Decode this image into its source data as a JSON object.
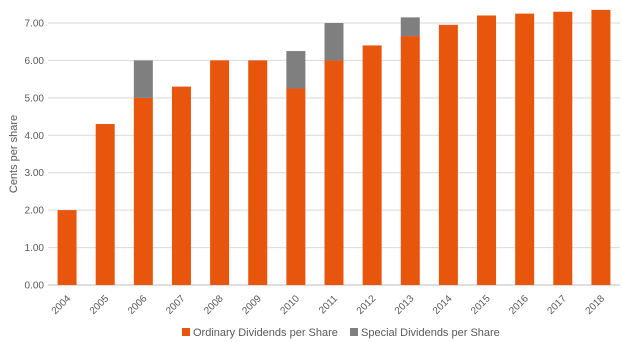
{
  "chart_data": {
    "type": "bar",
    "stacked": true,
    "categories": [
      "2004",
      "2005",
      "2006",
      "2007",
      "2008",
      "2009",
      "2010",
      "2011",
      "2012",
      "2013",
      "2014",
      "2015",
      "2016",
      "2017",
      "2018"
    ],
    "series": [
      {
        "name": "Ordinary Dividends per Share",
        "color": "#e8550c",
        "values": [
          2.0,
          4.3,
          5.0,
          5.3,
          6.0,
          6.0,
          5.25,
          6.0,
          6.4,
          6.65,
          6.95,
          7.2,
          7.25,
          7.3,
          7.35
        ]
      },
      {
        "name": "Special Dividends per Share",
        "color": "#7f7f7f",
        "values": [
          0,
          0,
          1.0,
          0,
          0,
          0,
          1.0,
          1.0,
          0,
          0.5,
          0,
          0,
          0,
          0,
          0
        ]
      }
    ],
    "yticks": [
      "0.00",
      "1.00",
      "2.00",
      "3.00",
      "4.00",
      "5.00",
      "6.00",
      "7.00"
    ],
    "ylabel": "Cents per share",
    "xlabel": "",
    "ylim": [
      0,
      7.4
    ],
    "grid": true,
    "legend_position": "bottom"
  }
}
